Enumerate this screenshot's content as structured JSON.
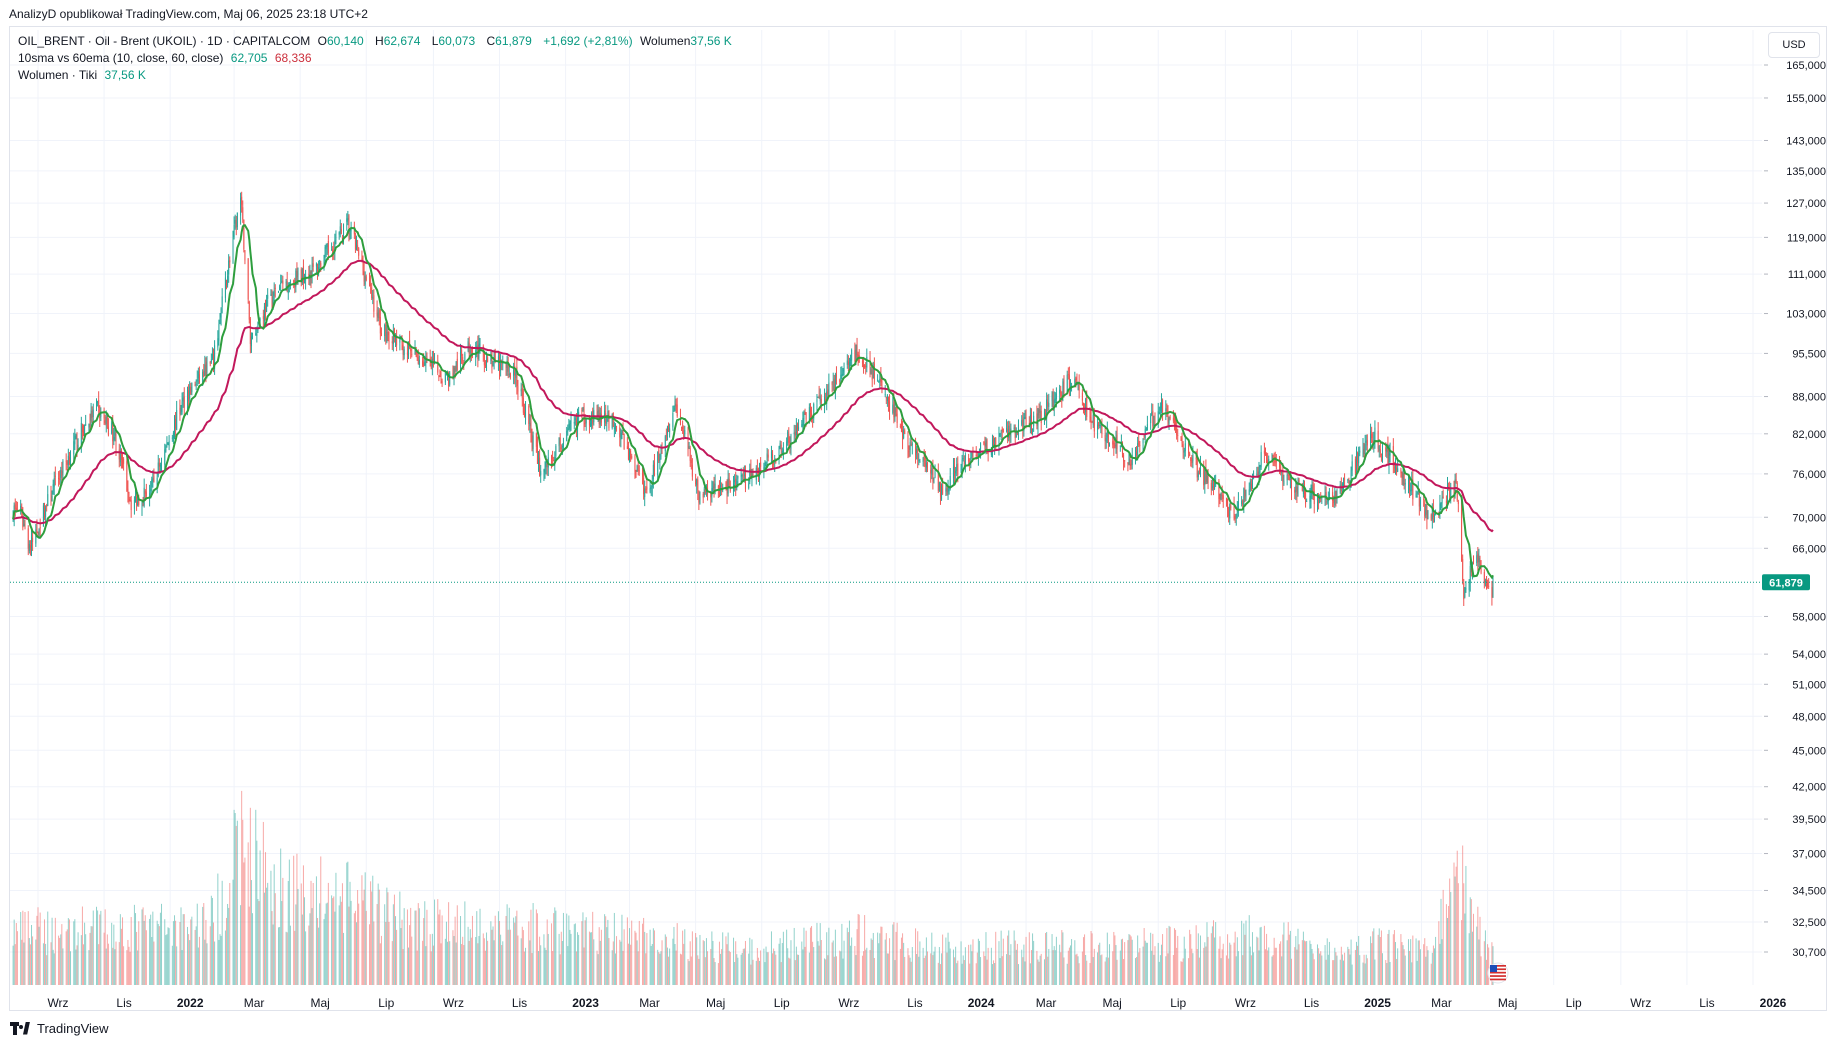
{
  "header": {
    "publisher": "AnalizyD opublikował TradingView.com, Maj 06, 2025 23:18 UTC+2"
  },
  "legend": {
    "symbol": "OIL_BRENT · Oil - Brent (UKOIL) · 1D · CAPITALCOM",
    "o_label": "O",
    "o_value": "60,140",
    "h_label": "H",
    "h_value": "62,674",
    "l_label": "L",
    "l_value": "60,073",
    "c_label": "C",
    "c_value": "61,879",
    "change": "+1,692 (+2,81%)",
    "vol_label": "Wolumen",
    "vol_value": "37,56 K",
    "ma_title": "10sma vs 60ema (10, close, 60, close)",
    "ma_sma": "62,705",
    "ma_ema": "68,336",
    "vol_title": "Wolumen · Tiki",
    "vol_ticks": "37,56 K"
  },
  "currency": "USD",
  "brand": "TradingView",
  "colors": {
    "up": "#26a69a",
    "down": "#ef5350",
    "sma": "#2e9e3e",
    "ema": "#c2185b",
    "price_tag": "#089981",
    "grid": "#f0f3fa",
    "axis_text": "#131722"
  },
  "chart_data": {
    "type": "candlestick",
    "scale": "log",
    "current_price": 61.879,
    "current_price_label": "61,879",
    "y_ticks": [
      "165,000",
      "155,000",
      "143,000",
      "135,000",
      "127,000",
      "119,000",
      "111,000",
      "103,000",
      "95,500",
      "88,000",
      "82,000",
      "76,000",
      "70,000",
      "66,000",
      "58,000",
      "54,000",
      "51,000",
      "48,000",
      "45,000",
      "42,000",
      "39,500",
      "37,000",
      "34,500",
      "32,500",
      "30,700"
    ],
    "x_ticks": [
      "Wrz",
      "Lis",
      "2022",
      "Mar",
      "Maj",
      "Lip",
      "Wrz",
      "Lis",
      "2023",
      "Mar",
      "Maj",
      "Lip",
      "Wrz",
      "Lis",
      "2024",
      "Mar",
      "Maj",
      "Lip",
      "Wrz",
      "Lis",
      "2025",
      "Mar",
      "Maj",
      "Lip",
      "Wrz",
      "Lis",
      "2026"
    ],
    "price_path": [
      [
        "2021-08-15",
        71
      ],
      [
        "2021-08-25",
        66
      ],
      [
        "2021-09-15",
        74
      ],
      [
        "2021-10-10",
        82
      ],
      [
        "2021-10-25",
        86
      ],
      [
        "2021-11-10",
        82
      ],
      [
        "2021-11-26",
        72
      ],
      [
        "2021-12-15",
        74
      ],
      [
        "2022-01-15",
        88
      ],
      [
        "2022-02-10",
        94
      ],
      [
        "2022-03-07",
        128
      ],
      [
        "2022-03-16",
        98
      ],
      [
        "2022-04-01",
        105
      ],
      [
        "2022-04-15",
        109
      ],
      [
        "2022-05-15",
        112
      ],
      [
        "2022-06-14",
        122
      ],
      [
        "2022-07-15",
        100
      ],
      [
        "2022-08-15",
        95
      ],
      [
        "2022-09-15",
        91
      ],
      [
        "2022-10-05",
        97
      ],
      [
        "2022-10-25",
        94
      ],
      [
        "2022-11-15",
        92
      ],
      [
        "2022-12-09",
        76
      ],
      [
        "2023-01-15",
        85
      ],
      [
        "2023-02-15",
        84
      ],
      [
        "2023-03-17",
        73
      ],
      [
        "2023-04-12",
        87
      ],
      [
        "2023-05-04",
        73
      ],
      [
        "2023-06-15",
        75
      ],
      [
        "2023-07-15",
        79
      ],
      [
        "2023-08-20",
        86
      ],
      [
        "2023-09-27",
        96
      ],
      [
        "2023-10-15",
        91
      ],
      [
        "2023-11-15",
        80
      ],
      [
        "2023-12-13",
        74
      ],
      [
        "2024-01-15",
        79
      ],
      [
        "2024-02-15",
        82
      ],
      [
        "2024-03-15",
        85
      ],
      [
        "2024-04-12",
        91
      ],
      [
        "2024-05-01",
        84
      ],
      [
        "2024-06-05",
        78
      ],
      [
        "2024-07-05",
        87
      ],
      [
        "2024-08-05",
        77
      ],
      [
        "2024-09-10",
        70
      ],
      [
        "2024-10-07",
        79
      ],
      [
        "2024-10-25",
        75
      ],
      [
        "2024-11-15",
        73
      ],
      [
        "2024-12-15",
        73
      ],
      [
        "2025-01-15",
        82
      ],
      [
        "2025-02-15",
        75
      ],
      [
        "2025-03-10",
        70
      ],
      [
        "2025-04-02",
        75
      ],
      [
        "2025-04-09",
        60
      ],
      [
        "2025-04-20",
        66
      ],
      [
        "2025-05-05",
        60
      ],
      [
        "2025-05-06",
        61.879
      ]
    ],
    "sma_period": 10,
    "ema_period": 60,
    "sma_last": 62.705,
    "ema_last": 68.336,
    "volume_path": [
      [
        "2021-08-15",
        0.28
      ],
      [
        "2021-12-15",
        0.3
      ],
      [
        "2022-02-10",
        0.34
      ],
      [
        "2022-03-07",
        0.75
      ],
      [
        "2022-04-15",
        0.5
      ],
      [
        "2022-06-14",
        0.45
      ],
      [
        "2022-08-15",
        0.32
      ],
      [
        "2022-12-09",
        0.3
      ],
      [
        "2023-03-17",
        0.25
      ],
      [
        "2023-06-15",
        0.18
      ],
      [
        "2023-09-27",
        0.26
      ],
      [
        "2023-12-13",
        0.2
      ],
      [
        "2024-04-12",
        0.2
      ],
      [
        "2024-08-05",
        0.22
      ],
      [
        "2024-10-07",
        0.28
      ],
      [
        "2024-12-15",
        0.15
      ],
      [
        "2025-01-15",
        0.22
      ],
      [
        "2025-03-10",
        0.18
      ],
      [
        "2025-04-09",
        0.65
      ],
      [
        "2025-04-20",
        0.3
      ],
      [
        "2025-05-06",
        0.2
      ]
    ]
  }
}
